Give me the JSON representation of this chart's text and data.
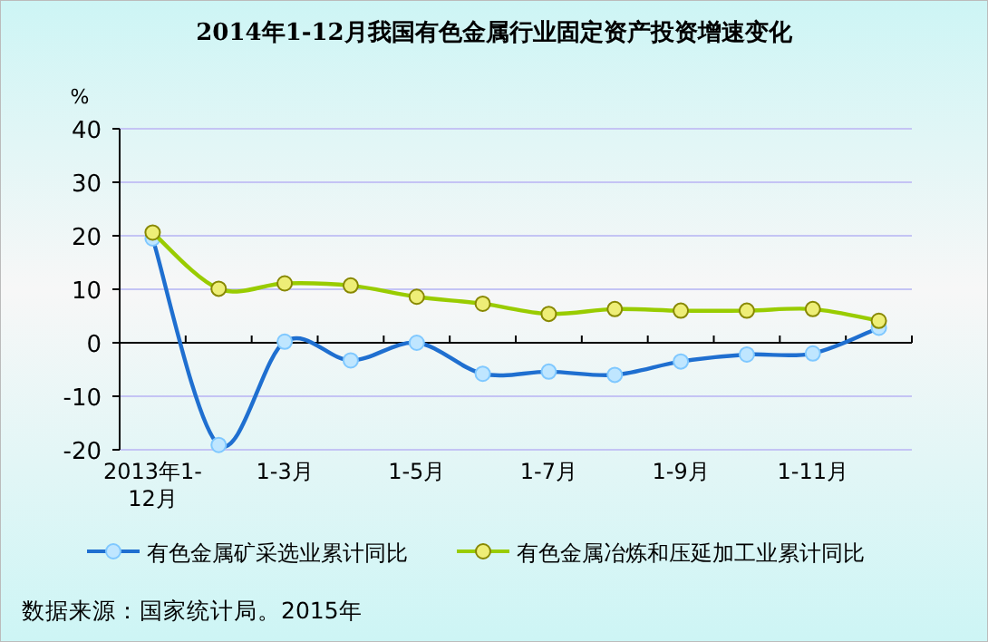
{
  "chart_data": {
    "type": "line",
    "title": "2014年1-12月我国有色金属行业固定资产投资增速变化",
    "ylabel": "%",
    "categories": [
      "2013年1-12月",
      null,
      "1-3月",
      null,
      "1-5月",
      null,
      "1-7月",
      null,
      "1-9月",
      null,
      "1-11月",
      null
    ],
    "series": [
      {
        "name": "有色金属矿采选业累计同比",
        "color": "#1f6fd0",
        "values": [
          19.5,
          -19.1,
          0.2,
          -3.3,
          0.0,
          -5.8,
          -5.4,
          -6.0,
          -3.5,
          -2.2,
          -2.0,
          2.8
        ]
      },
      {
        "name": "有色金属冶炼和压延加工业累计同比",
        "color": "#99cc00",
        "values": [
          20.6,
          10.1,
          11.1,
          10.7,
          8.6,
          7.3,
          5.4,
          6.3,
          6.0,
          6.0,
          6.3,
          4.1
        ]
      }
    ],
    "ylim": [
      -20,
      40
    ],
    "yticks": [
      -20,
      -10,
      0,
      10,
      20,
      30,
      40
    ],
    "grid": "y",
    "legend": "bottom",
    "marker": "circle",
    "line_style": "solid",
    "annotations": [
      "数据来源：国家统计局。2015年"
    ]
  }
}
